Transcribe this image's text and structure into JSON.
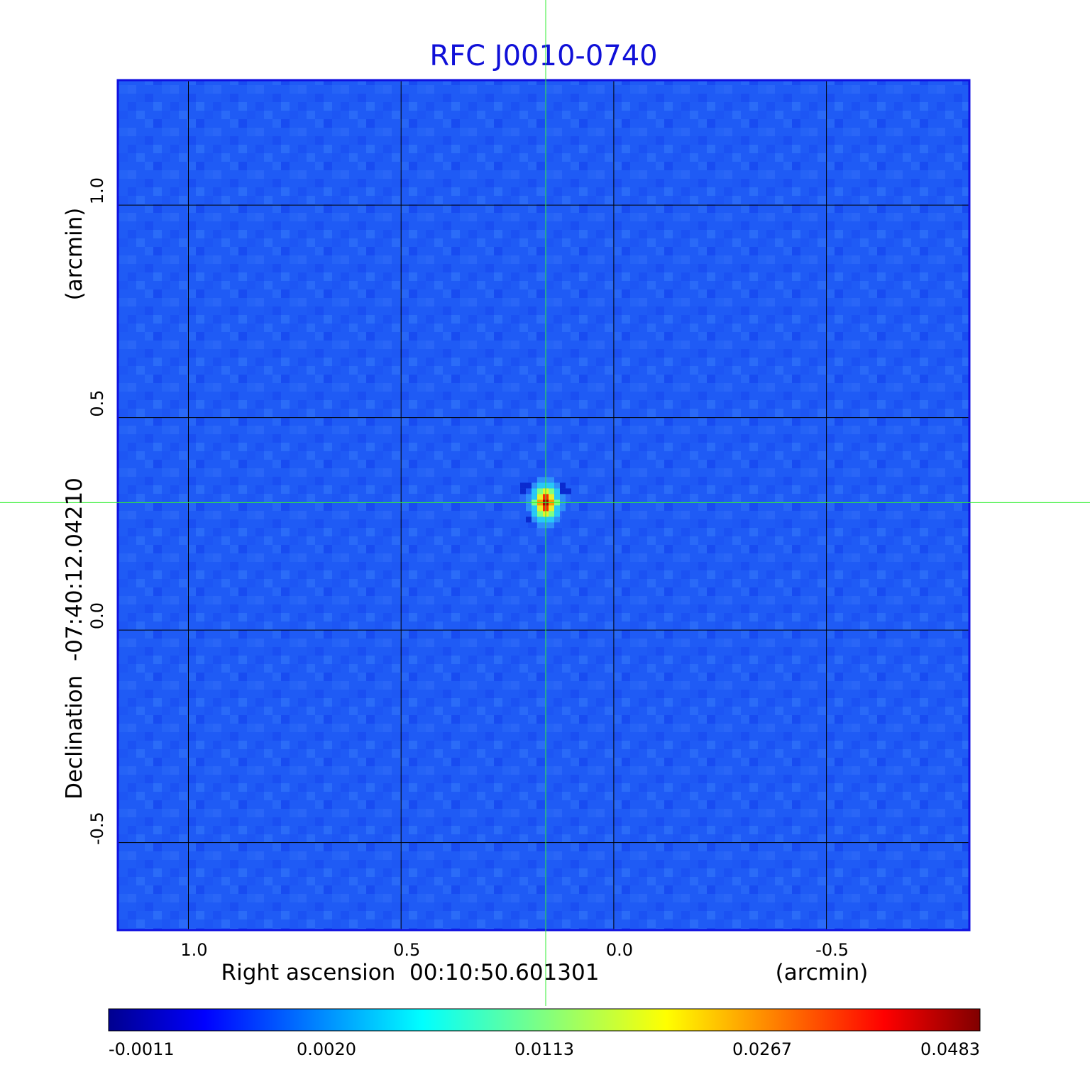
{
  "chart_data": {
    "type": "heatmap",
    "title": "RFC J0010-0740",
    "xlabel": "Right ascension  00:10:50.601301",
    "xunit": "(arcmin)",
    "ylabel": "Declination  -07:40:12.04210",
    "yunit": "(arcmin)",
    "x_ticks": [
      "1.0",
      "0.5",
      "0.0",
      "-0.5"
    ],
    "y_ticks": [
      "1.0",
      "0.5",
      "0.0",
      "-0.5"
    ],
    "x_tick_values": [
      1.0,
      0.5,
      0.0,
      -0.5
    ],
    "y_tick_values": [
      1.0,
      0.5,
      0.0,
      -0.5
    ],
    "xlim": [
      1.166,
      -0.836
    ],
    "ylim": [
      -0.706,
      1.294
    ],
    "grid": true,
    "crosshair": {
      "x": 0.16,
      "y": 0.3
    },
    "source_peak": {
      "x": 0.16,
      "y": 0.3,
      "value": 0.0483
    },
    "colorbar": {
      "ticks": [
        "-0.0011",
        "0.0020",
        "0.0113",
        "0.0267",
        "0.0483"
      ],
      "colormap": "jet",
      "position": "bottom"
    },
    "colors": {
      "background_field": "#1f5bf5",
      "grid": "#000000",
      "crosshair": "#33ee33",
      "title": "#1010d8"
    }
  }
}
